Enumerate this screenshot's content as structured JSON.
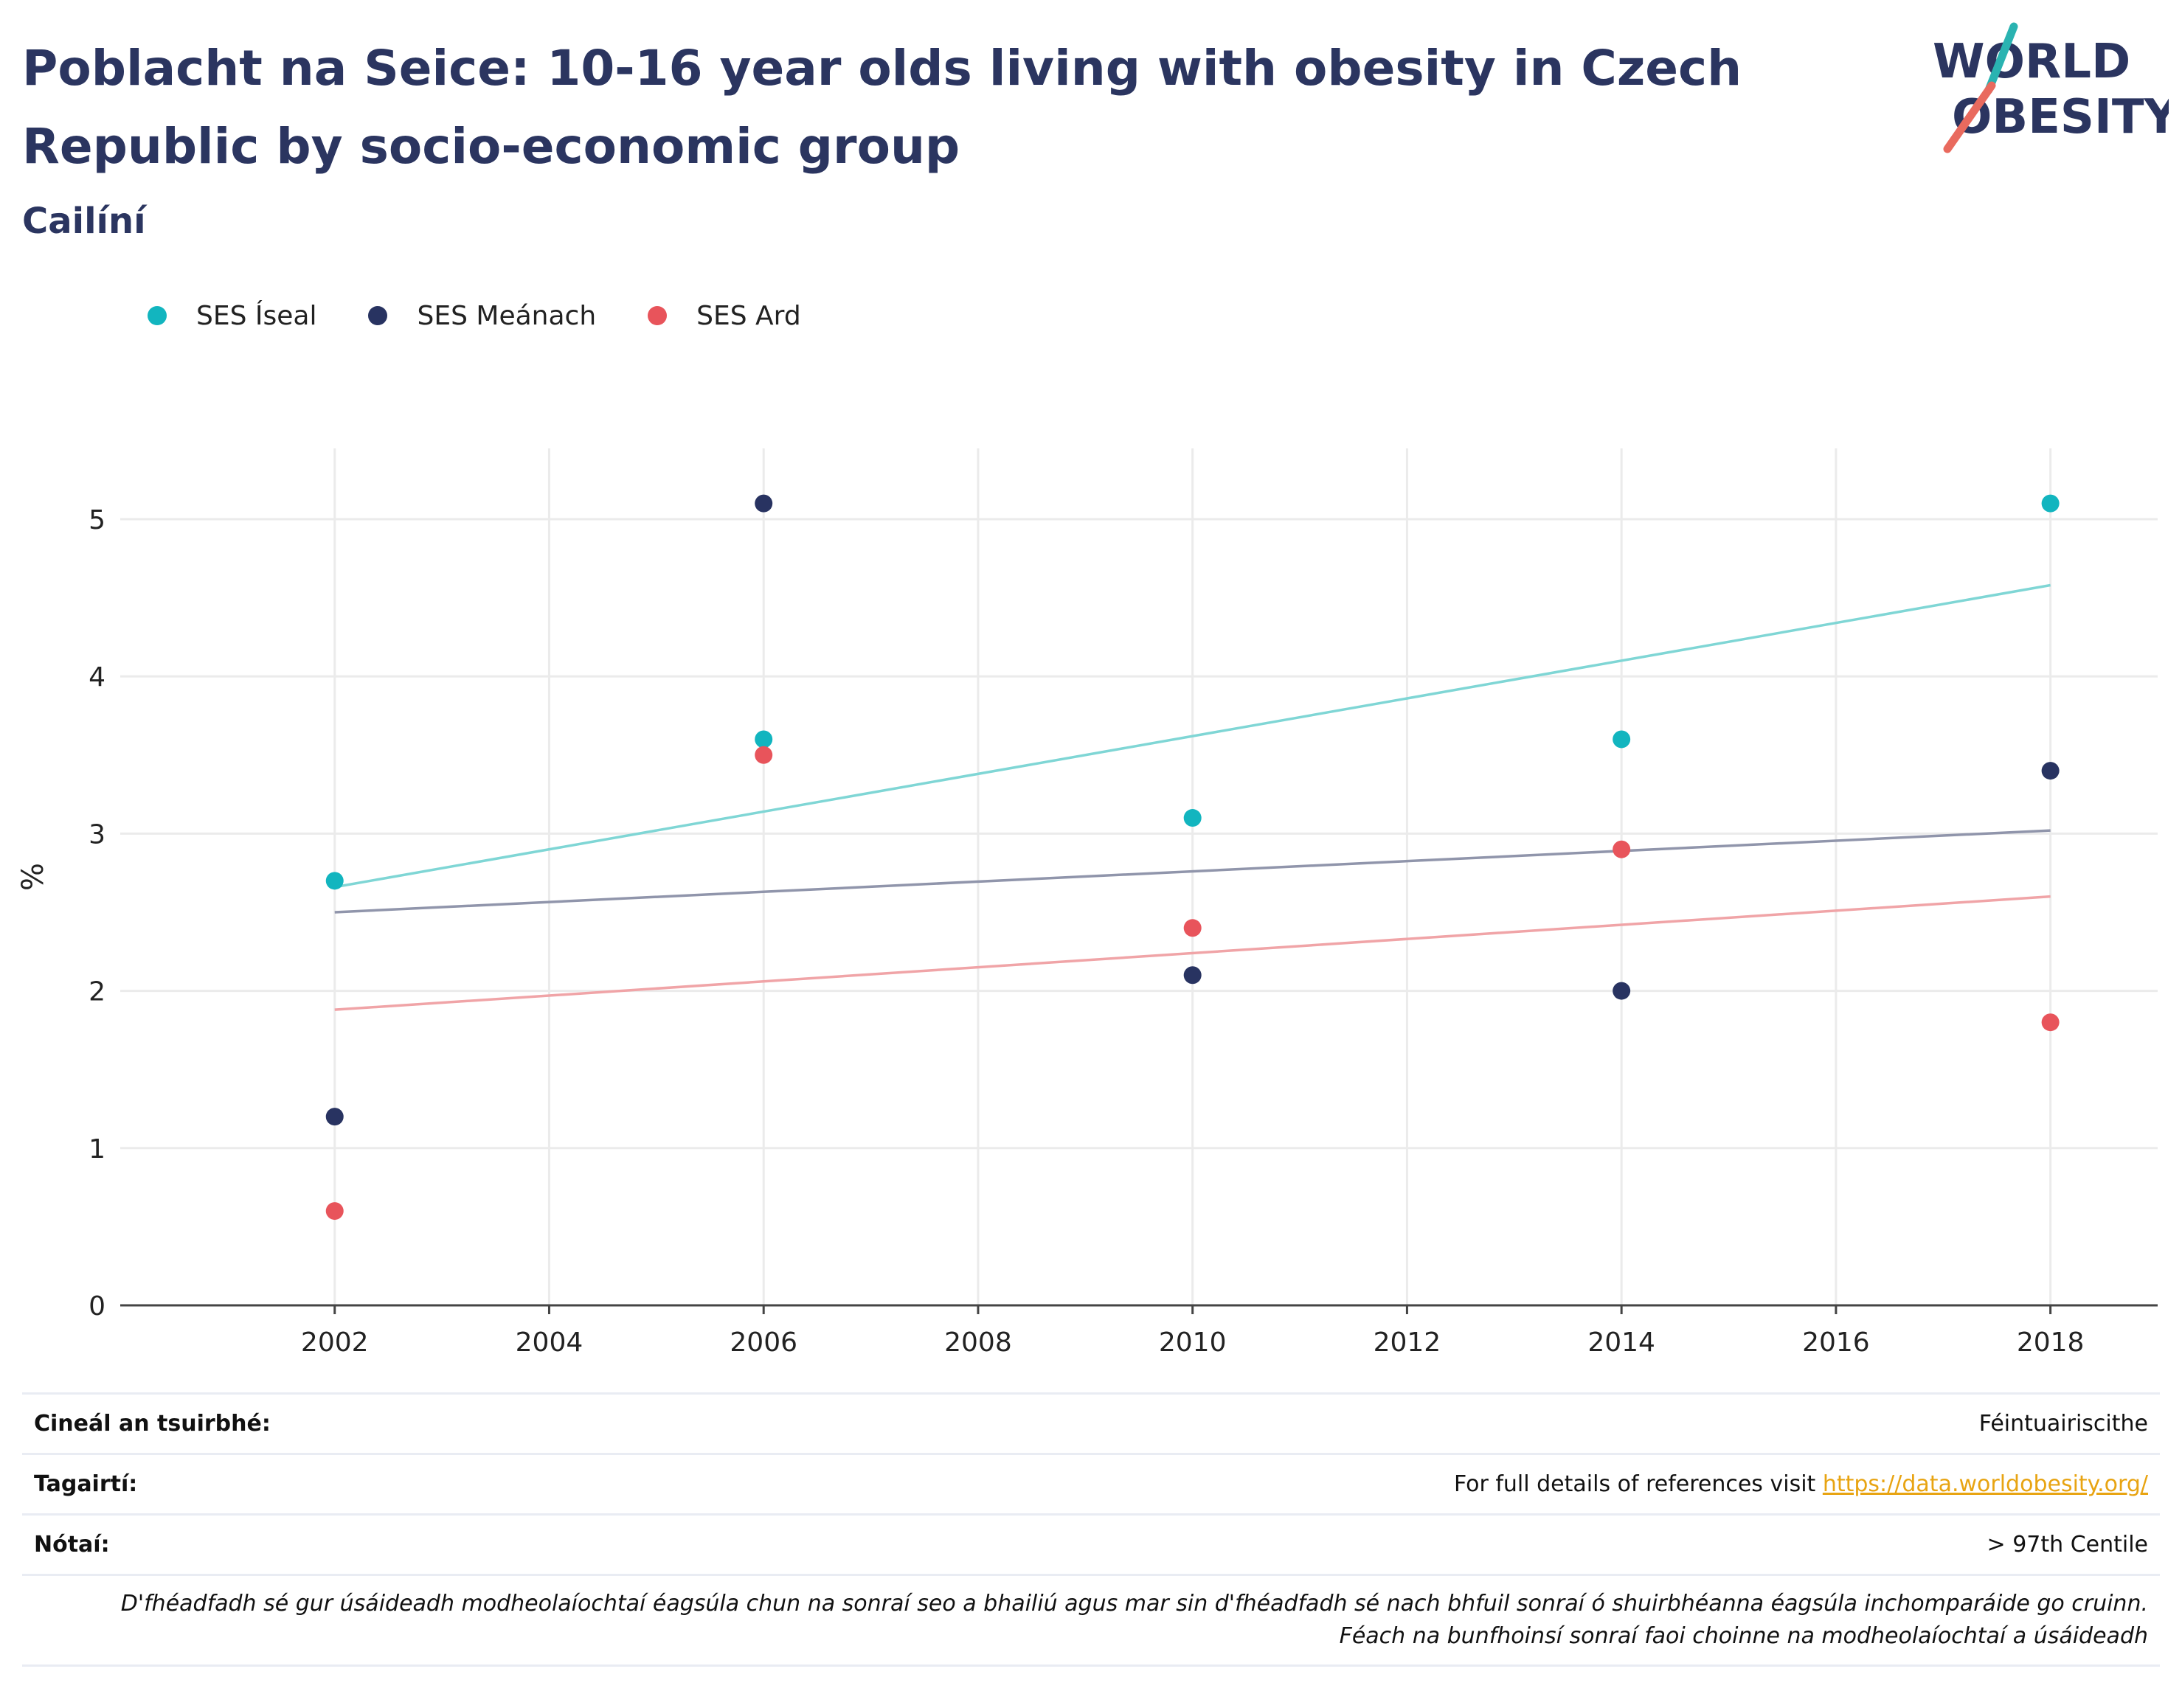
{
  "title": "Poblacht na Seice: 10-16 year olds living with obesity in Czech Republic by socio-economic group",
  "subtitle": "Cailíní",
  "logo": {
    "line1": "WORLD",
    "line2": "OBESITY",
    "teal": "#2ab3b1",
    "coral": "#e96a5e",
    "navy": "#2b3560"
  },
  "colors": {
    "low": "#12b5bf",
    "mid": "#283361",
    "high": "#e8545b",
    "low_trend": "#7fd6d5",
    "mid_trend": "#9095ab",
    "high_trend": "#f0a4a7"
  },
  "chart_data": {
    "type": "scatter",
    "xlabel": "",
    "ylabel": "%",
    "xlim": [
      2000,
      2019
    ],
    "ylim": [
      0,
      5.45
    ],
    "xticks": [
      2002,
      2004,
      2006,
      2008,
      2010,
      2012,
      2014,
      2016,
      2018
    ],
    "yticks": [
      0,
      1,
      2,
      3,
      4,
      5
    ],
    "grid": true,
    "legend_position": "top-left",
    "series": [
      {
        "name": "SES Íseal",
        "color_key": "low",
        "x": [
          2002,
          2006,
          2010,
          2014,
          2018
        ],
        "values": [
          2.7,
          3.6,
          3.1,
          3.6,
          5.1
        ],
        "trend": [
          2.66,
          4.58
        ]
      },
      {
        "name": "SES Meánach",
        "color_key": "mid",
        "x": [
          2002,
          2006,
          2010,
          2014,
          2018
        ],
        "values": [
          1.2,
          5.1,
          2.1,
          2.0,
          3.4
        ],
        "trend": [
          2.5,
          3.02
        ]
      },
      {
        "name": "SES Ard",
        "color_key": "high",
        "x": [
          2002,
          2006,
          2010,
          2014,
          2018
        ],
        "values": [
          0.6,
          3.5,
          2.4,
          2.9,
          1.8
        ],
        "trend": [
          1.88,
          2.6
        ]
      }
    ]
  },
  "footer": {
    "survey_label": "Cineál an tsuirbhé:",
    "survey_value": "Féintuairiscithe",
    "refs_label": "Tagairtí:",
    "refs_text": "For full details of references visit ",
    "refs_link": "https://data.worldobesity.org/",
    "notes_label": "Nótaí:",
    "notes_value": "> 97th Centile",
    "disclaimer_line1": "D'fhéadfadh sé gur úsáideadh modheolaíochtaí éagsúla chun na sonraí seo a bhailiú agus mar sin d'fhéadfadh sé nach bhfuil sonraí ó shuirbhéanna éagsúla inchomparáide go cruinn.",
    "disclaimer_line2": "Féach na bunfhoinsí sonraí faoi choinne na modheolaíochtaí a úsáideadh"
  }
}
